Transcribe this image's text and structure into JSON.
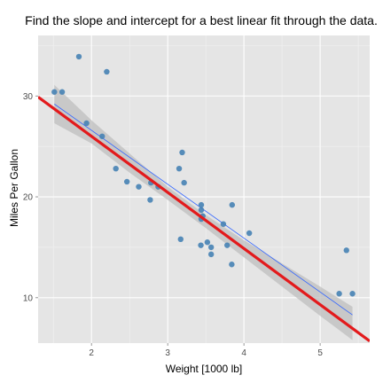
{
  "chart_data": {
    "type": "scatter",
    "title": "Find the slope and intercept for a best linear fit through the data.",
    "xlabel": "Weight [1000 lb]",
    "ylabel": "Miles Per Gallon",
    "xlim": [
      1.3,
      5.65
    ],
    "ylim": [
      5.5,
      36.0
    ],
    "x_ticks": [
      2,
      3,
      4,
      5
    ],
    "y_ticks": [
      10,
      20,
      30
    ],
    "x_tick_labels": [
      "2",
      "3",
      "4",
      "5"
    ],
    "y_tick_labels": [
      "10",
      "20",
      "30"
    ],
    "grid": true,
    "colors": {
      "panel": "#e5e5e5",
      "grid_major": "#ffffff",
      "grid_minor": "#f2f2f2",
      "points": "#4682b4",
      "fit_line": "#3366ff",
      "band": "#bdbdbd",
      "guess_line": "#e31a1c"
    },
    "points": [
      {
        "x": 2.62,
        "y": 21.0
      },
      {
        "x": 2.875,
        "y": 21.0
      },
      {
        "x": 2.32,
        "y": 22.8
      },
      {
        "x": 3.215,
        "y": 21.4
      },
      {
        "x": 3.44,
        "y": 18.7
      },
      {
        "x": 3.46,
        "y": 18.1
      },
      {
        "x": 3.57,
        "y": 14.3
      },
      {
        "x": 3.19,
        "y": 24.4
      },
      {
        "x": 3.15,
        "y": 22.8
      },
      {
        "x": 3.44,
        "y": 19.2
      },
      {
        "x": 3.44,
        "y": 17.8
      },
      {
        "x": 4.07,
        "y": 16.4
      },
      {
        "x": 3.73,
        "y": 17.3
      },
      {
        "x": 3.78,
        "y": 15.2
      },
      {
        "x": 5.25,
        "y": 10.4
      },
      {
        "x": 5.424,
        "y": 10.4
      },
      {
        "x": 5.345,
        "y": 14.7
      },
      {
        "x": 2.2,
        "y": 32.4
      },
      {
        "x": 1.615,
        "y": 30.4
      },
      {
        "x": 1.835,
        "y": 33.9
      },
      {
        "x": 2.465,
        "y": 21.5
      },
      {
        "x": 3.52,
        "y": 15.5
      },
      {
        "x": 3.435,
        "y": 15.2
      },
      {
        "x": 3.84,
        "y": 13.3
      },
      {
        "x": 3.845,
        "y": 19.2
      },
      {
        "x": 1.935,
        "y": 27.3
      },
      {
        "x": 2.14,
        "y": 26.0
      },
      {
        "x": 1.513,
        "y": 30.4
      },
      {
        "x": 3.17,
        "y": 15.8
      },
      {
        "x": 2.77,
        "y": 19.7
      },
      {
        "x": 3.57,
        "y": 15.0
      },
      {
        "x": 2.78,
        "y": 21.4
      }
    ],
    "fit_line": {
      "x": [
        1.513,
        5.424
      ],
      "y": [
        29.199,
        8.297
      ]
    },
    "confidence_band": {
      "x": [
        1.513,
        2.0,
        2.5,
        3.0,
        3.5,
        4.0,
        4.5,
        5.0,
        5.424
      ],
      "upper": [
        31.1,
        27.6,
        24.3,
        21.0,
        18.2,
        15.7,
        13.4,
        11.1,
        9.1
      ],
      "lower": [
        27.3,
        25.3,
        22.4,
        19.7,
        16.9,
        14.0,
        11.1,
        8.2,
        5.8
      ]
    },
    "guess_line": {
      "x": [
        1.3,
        5.65
      ],
      "y": [
        29.9,
        5.7
      ]
    }
  }
}
